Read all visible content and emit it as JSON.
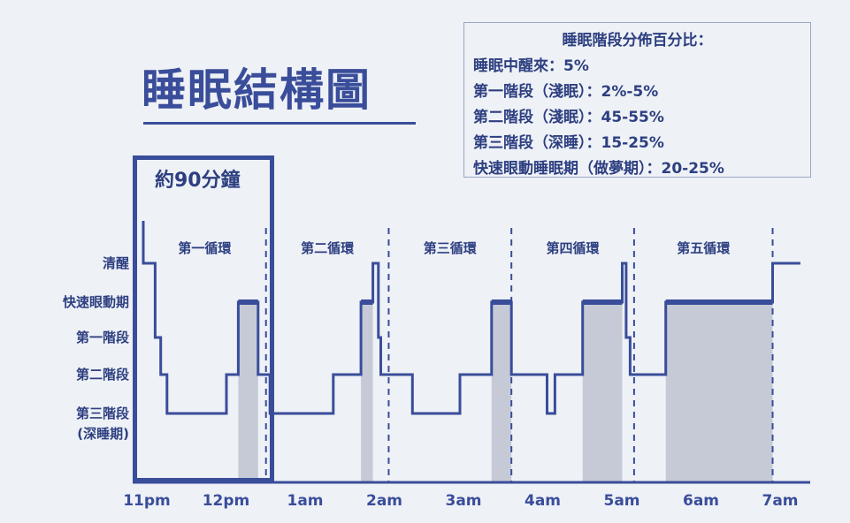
{
  "page": {
    "title": "睡眠結構圖",
    "cycle_duration_label": "約90分鐘"
  },
  "legend": {
    "title": "睡眠階段分佈百分比：",
    "rows": [
      "睡眠中醒來：5%",
      "第一階段（淺眠）：2%-5%",
      "第二階段（淺眠）：45-55%",
      "第三階段（深睡）：15-25%",
      "快速眼動睡眠期（做夢期）：20-25%"
    ]
  },
  "colors": {
    "line": "#3a4d9a",
    "rem_fill": "#c5cad6",
    "axis": "#3a4d9a"
  },
  "chart_data": {
    "type": "line",
    "title": "睡眠結構圖",
    "xlabel": "",
    "ylabel": "",
    "x_unit": "hours after 11pm",
    "xlim": [
      0,
      8.3
    ],
    "x_ticks": [
      {
        "x": 0,
        "label": "11pm"
      },
      {
        "x": 1,
        "label": "12pm"
      },
      {
        "x": 2,
        "label": "1am"
      },
      {
        "x": 3,
        "label": "2am"
      },
      {
        "x": 4,
        "label": "3am"
      },
      {
        "x": 5,
        "label": "4am"
      },
      {
        "x": 6,
        "label": "5am"
      },
      {
        "x": 7,
        "label": "6am"
      },
      {
        "x": 8,
        "label": "7am"
      }
    ],
    "stages": [
      {
        "id": "awake",
        "label": "清醒"
      },
      {
        "id": "rem",
        "label": "快速眼動期"
      },
      {
        "id": "n1",
        "label": "第一階段"
      },
      {
        "id": "n2",
        "label": "第二階段"
      },
      {
        "id": "n3",
        "label": "第三階段",
        "label2": "(深睡期)"
      }
    ],
    "cycles": [
      {
        "label": "第一循環",
        "start": 0,
        "end": 1.55
      },
      {
        "label": "第二循環",
        "start": 1.55,
        "end": 3.1
      },
      {
        "label": "第三循環",
        "start": 3.1,
        "end": 4.65
      },
      {
        "label": "第四循環",
        "start": 4.65,
        "end": 6.2
      },
      {
        "label": "第五循環",
        "start": 6.2,
        "end": 7.95
      }
    ],
    "hypnogram": [
      {
        "t": 0.1,
        "stage": "awake"
      },
      {
        "t": 0.15,
        "stage": "n1"
      },
      {
        "t": 0.22,
        "stage": "n2"
      },
      {
        "t": 0.3,
        "stage": "n3"
      },
      {
        "t": 1.05,
        "stage": "n2"
      },
      {
        "t": 1.2,
        "stage": "rem"
      },
      {
        "t": 1.45,
        "stage": "n2"
      },
      {
        "t": 1.6,
        "stage": "n3"
      },
      {
        "t": 2.4,
        "stage": "n2"
      },
      {
        "t": 2.75,
        "stage": "rem"
      },
      {
        "t": 2.9,
        "stage": "awake"
      },
      {
        "t": 2.97,
        "stage": "n1"
      },
      {
        "t": 3.0,
        "stage": "n2"
      },
      {
        "t": 3.4,
        "stage": "n3"
      },
      {
        "t": 4.0,
        "stage": "n2"
      },
      {
        "t": 4.4,
        "stage": "rem"
      },
      {
        "t": 4.65,
        "stage": "n2"
      },
      {
        "t": 5.1,
        "stage": "n3"
      },
      {
        "t": 5.2,
        "stage": "n2"
      },
      {
        "t": 5.55,
        "stage": "rem"
      },
      {
        "t": 6.05,
        "stage": "awake"
      },
      {
        "t": 6.1,
        "stage": "n1"
      },
      {
        "t": 6.15,
        "stage": "n2"
      },
      {
        "t": 6.6,
        "stage": "rem"
      },
      {
        "t": 7.95,
        "stage": "awake"
      },
      {
        "t": 8.3,
        "stage": "awake"
      }
    ],
    "rem_periods": [
      [
        1.2,
        1.45
      ],
      [
        2.75,
        2.9
      ],
      [
        4.4,
        4.65
      ],
      [
        5.55,
        6.05
      ],
      [
        6.6,
        7.95
      ]
    ],
    "legend": "top-right"
  }
}
